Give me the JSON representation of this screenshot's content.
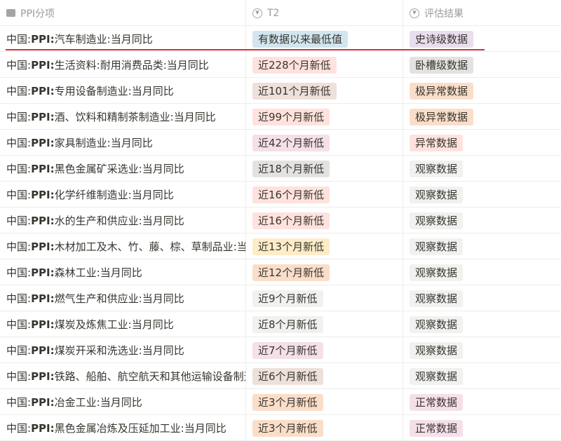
{
  "header": {
    "col1": "PPI分项",
    "col2": "T2",
    "col3": "评估结果"
  },
  "prefix": "中国:",
  "bold": "PPI:",
  "colors": {
    "blue": "#d3e5ef",
    "purple": "#e8deee",
    "red": "#ffe2dd",
    "gray": "#e3e2e0",
    "brown": "#eee0da",
    "orange": "#fadec9",
    "yellow": "#fdecc8",
    "pink": "#f5e0e9",
    "default": "#f1f1ef",
    "highlight_line": "#d0303a"
  },
  "rows": [
    {
      "name": "汽车制造业:当月同比",
      "t2": "有数据以来最低值",
      "t2_color": "blue",
      "eval": "史诗级数据",
      "eval_color": "purple"
    },
    {
      "name": "生活资料:耐用消费品类:当月同比",
      "t2": "近228个月新低",
      "t2_color": "red",
      "eval": "卧槽级数据",
      "eval_color": "gray"
    },
    {
      "name": "专用设备制造业:当月同比",
      "t2": "近101个月新低",
      "t2_color": "brown",
      "eval": "极异常数据",
      "eval_color": "orange"
    },
    {
      "name": "酒、饮料和精制茶制造业:当月同比",
      "t2": "近99个月新低",
      "t2_color": "red",
      "eval": "极异常数据",
      "eval_color": "orange"
    },
    {
      "name": "家具制造业:当月同比",
      "t2": "近42个月新低",
      "t2_color": "pink",
      "eval": "异常数据",
      "eval_color": "red"
    },
    {
      "name": "黑色金属矿采选业:当月同比",
      "t2": "近18个月新低",
      "t2_color": "gray",
      "eval": "观察数据",
      "eval_color": "default"
    },
    {
      "name": "化学纤维制造业:当月同比",
      "t2": "近16个月新低",
      "t2_color": "red",
      "eval": "观察数据",
      "eval_color": "default"
    },
    {
      "name": "水的生产和供应业:当月同比",
      "t2": "近16个月新低",
      "t2_color": "red",
      "eval": "观察数据",
      "eval_color": "default"
    },
    {
      "name": "木材加工及木、竹、藤、棕、草制品业:当月同比",
      "t2": "近13个月新低",
      "t2_color": "yellow",
      "eval": "观察数据",
      "eval_color": "default"
    },
    {
      "name": "森林工业:当月同比",
      "t2": "近12个月新低",
      "t2_color": "orange",
      "eval": "观察数据",
      "eval_color": "default"
    },
    {
      "name": "燃气生产和供应业:当月同比",
      "t2": "近9个月新低",
      "t2_color": "default",
      "eval": "观察数据",
      "eval_color": "default"
    },
    {
      "name": "煤炭及炼焦工业:当月同比",
      "t2": "近8个月新低",
      "t2_color": "default",
      "eval": "观察数据",
      "eval_color": "default"
    },
    {
      "name": "煤炭开采和洗选业:当月同比",
      "t2": "近7个月新低",
      "t2_color": "pink",
      "eval": "观察数据",
      "eval_color": "default"
    },
    {
      "name": "铁路、船舶、航空航天和其他运输设备制造业:当月同比",
      "t2": "近6个月新低",
      "t2_color": "brown",
      "eval": "观察数据",
      "eval_color": "default"
    },
    {
      "name": "冶金工业:当月同比",
      "t2": "近3个月新低",
      "t2_color": "orange",
      "eval": "正常数据",
      "eval_color": "pink"
    },
    {
      "name": "黑色金属冶炼及压延加工业:当月同比",
      "t2": "近3个月新低",
      "t2_color": "orange",
      "eval": "正常数据",
      "eval_color": "pink"
    }
  ]
}
